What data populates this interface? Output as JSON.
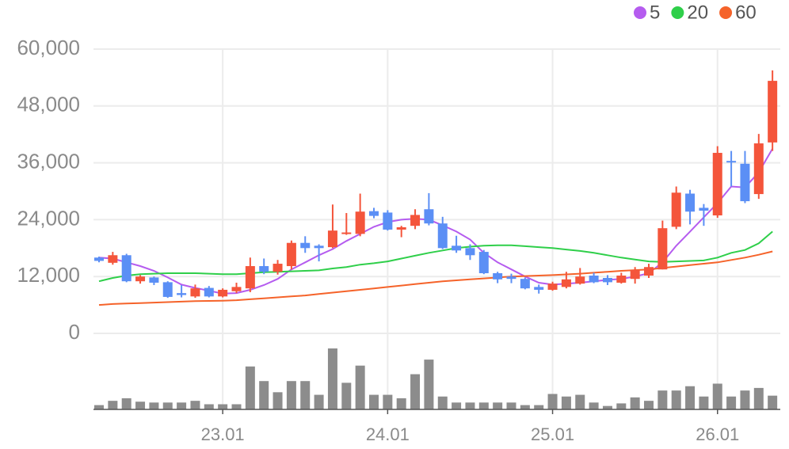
{
  "chart_data": {
    "type": "candlestick",
    "categories": [
      null,
      null,
      null,
      null,
      null,
      null,
      null,
      null,
      null,
      "23.01",
      null,
      null,
      null,
      null,
      null,
      null,
      null,
      null,
      null,
      null,
      null,
      "24.01",
      null,
      null,
      null,
      null,
      null,
      null,
      null,
      null,
      null,
      null,
      null,
      "25.01",
      null,
      null,
      null,
      null,
      null,
      null,
      null,
      null,
      null,
      null,
      null,
      "26.01",
      null,
      null,
      null,
      null
    ],
    "open": [
      16000,
      14900,
      16500,
      11000,
      11800,
      10800,
      8500,
      7800,
      9600,
      7800,
      8900,
      9500,
      14200,
      13000,
      14200,
      19100,
      18500,
      18200,
      21000,
      21000,
      25800,
      25500,
      21900,
      22700,
      26200,
      23200,
      18500,
      18000,
      17200,
      12700,
      12000,
      11500,
      9800,
      9200,
      9800,
      10500,
      12200,
      11700,
      10700,
      11500,
      12200,
      13500,
      22500,
      29500,
      26500,
      24900,
      36400,
      35800,
      29400,
      40300
    ],
    "high": [
      16200,
      17200,
      16800,
      12300,
      12000,
      11000,
      10200,
      10300,
      10000,
      9500,
      10700,
      16000,
      15800,
      15500,
      19600,
      20500,
      18800,
      27200,
      25400,
      29500,
      26500,
      26000,
      22700,
      26200,
      29600,
      24600,
      20600,
      18800,
      17600,
      13000,
      12600,
      11800,
      10300,
      10900,
      13000,
      13800,
      12800,
      12300,
      12800,
      14000,
      14700,
      23800,
      31000,
      30300,
      27300,
      39500,
      38500,
      38500,
      42100,
      55500
    ],
    "low": [
      15000,
      14500,
      10800,
      10500,
      10200,
      7500,
      7600,
      7500,
      7600,
      7600,
      8500,
      8700,
      12500,
      12400,
      13500,
      17000,
      15200,
      18000,
      20800,
      20500,
      24300,
      21700,
      20300,
      22000,
      22800,
      17800,
      17000,
      15500,
      12500,
      10600,
      10600,
      9300,
      8400,
      9000,
      9500,
      10300,
      10600,
      10200,
      10500,
      10500,
      11700,
      13500,
      22000,
      23000,
      22700,
      24400,
      31000,
      27500,
      28400,
      38500
    ],
    "close": [
      15300,
      16500,
      11000,
      12000,
      10700,
      7700,
      8100,
      9500,
      7800,
      9200,
      9800,
      14200,
      13000,
      14700,
      19100,
      18000,
      18000,
      21700,
      21300,
      25700,
      24800,
      21900,
      22400,
      25000,
      23200,
      18000,
      17500,
      16500,
      12700,
      11400,
      11500,
      9500,
      9200,
      10500,
      11400,
      12000,
      10800,
      10800,
      12200,
      13400,
      14000,
      22200,
      29700,
      25700,
      25900,
      38100,
      36100,
      27900,
      40100,
      53300
    ],
    "up_color": "#f4553b",
    "down_color": "#5b8ff5",
    "lines": [
      {
        "name": "5",
        "color": "#b55cef",
        "values": [
          16000,
          15800,
          15000,
          14200,
          13200,
          11800,
          10300,
          9600,
          9000,
          8400,
          8500,
          9200,
          10200,
          11500,
          13500,
          15000,
          16500,
          17800,
          19500,
          21000,
          22500,
          23500,
          24000,
          24200,
          24000,
          22800,
          21500,
          19800,
          17000,
          15000,
          13500,
          12000,
          10700,
          10300,
          10500,
          10700,
          11000,
          11300,
          11500,
          12000,
          12700,
          15000,
          18500,
          21500,
          24500,
          27500,
          31000,
          30800,
          34000,
          39000
        ]
      },
      {
        "name": "20",
        "color": "#2fcf4a",
        "values": [
          11000,
          11700,
          12200,
          12500,
          12600,
          12700,
          12700,
          12700,
          12600,
          12500,
          12500,
          12700,
          12900,
          13000,
          13100,
          13200,
          13300,
          13700,
          14000,
          14500,
          14800,
          15200,
          15800,
          16400,
          17000,
          17500,
          18000,
          18300,
          18500,
          18600,
          18600,
          18400,
          18200,
          18000,
          17700,
          17400,
          17000,
          16500,
          16000,
          15600,
          15200,
          15100,
          15200,
          15300,
          15400,
          16000,
          17000,
          17600,
          19000,
          21500
        ]
      },
      {
        "name": "60",
        "color": "#f5632a",
        "values": [
          6000,
          6200,
          6300,
          6400,
          6500,
          6600,
          6700,
          6800,
          6850,
          6900,
          7000,
          7200,
          7400,
          7600,
          7800,
          8000,
          8300,
          8600,
          8900,
          9200,
          9500,
          9800,
          10100,
          10400,
          10700,
          11000,
          11200,
          11400,
          11600,
          11800,
          12000,
          12100,
          12200,
          12300,
          12450,
          12600,
          12800,
          13000,
          13200,
          13350,
          13500,
          13800,
          14100,
          14400,
          14700,
          15000,
          15500,
          16000,
          16600,
          17300
        ]
      }
    ],
    "volume": {
      "color": "#8c8c8c",
      "values": [
        5,
        10,
        13,
        9,
        8,
        8,
        8,
        10,
        6,
        6,
        6,
        50,
        33,
        20,
        33,
        33,
        17,
        71,
        31,
        51,
        17,
        17,
        13,
        41,
        58,
        15,
        8,
        8,
        8,
        8,
        8,
        5,
        5,
        18,
        15,
        17,
        8,
        4,
        7,
        14,
        10,
        22,
        22,
        27,
        15,
        30,
        15,
        22,
        25,
        16
      ]
    },
    "ylim": [
      0,
      60000
    ],
    "yticks": [
      0,
      {
        "value": 12000,
        "label": "12,000"
      },
      {
        "value": 24000,
        "label": "24,000"
      },
      {
        "value": 36000,
        "label": "36,000"
      },
      {
        "value": 48000,
        "label": "48,000"
      },
      {
        "value": 60000,
        "label": "60,000"
      }
    ],
    "grid": true
  }
}
